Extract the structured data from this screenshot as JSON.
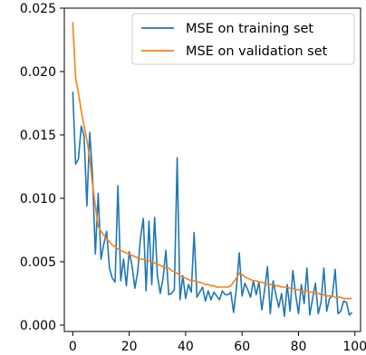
{
  "chart_data": {
    "type": "line",
    "xlim": [
      -3,
      102
    ],
    "ylim": [
      -0.0005,
      0.025
    ],
    "x_ticks": [
      0,
      20,
      40,
      60,
      80,
      100
    ],
    "x_tick_labels": [
      "0",
      "20",
      "40",
      "60",
      "80",
      "100"
    ],
    "y_ticks": [
      0.0,
      0.005,
      0.01,
      0.015,
      0.02,
      0.025
    ],
    "y_tick_labels": [
      "0.000",
      "0.005",
      "0.010",
      "0.015",
      "0.020",
      "0.025"
    ],
    "grid": false,
    "legend_position": "top-right",
    "series": [
      {
        "name": "MSE on training set",
        "color": "#1f77b4",
        "x": [
          0,
          1,
          2,
          3,
          4,
          5,
          6,
          7,
          8,
          9,
          10,
          11,
          12,
          13,
          14,
          15,
          16,
          17,
          18,
          19,
          20,
          21,
          22,
          23,
          24,
          25,
          26,
          27,
          28,
          29,
          30,
          31,
          32,
          33,
          34,
          35,
          36,
          37,
          38,
          39,
          40,
          41,
          42,
          43,
          44,
          45,
          46,
          47,
          48,
          49,
          50,
          51,
          52,
          53,
          54,
          55,
          56,
          57,
          58,
          59,
          60,
          61,
          62,
          63,
          64,
          65,
          66,
          67,
          68,
          69,
          70,
          71,
          72,
          73,
          74,
          75,
          76,
          77,
          78,
          79,
          80,
          81,
          82,
          83,
          84,
          85,
          86,
          87,
          88,
          89,
          90,
          91,
          92,
          93,
          94,
          95,
          96,
          97,
          98,
          99
        ],
        "values": [
          0.0184,
          0.0127,
          0.0131,
          0.0157,
          0.0149,
          0.0094,
          0.0152,
          0.0118,
          0.0056,
          0.0104,
          0.0052,
          0.0064,
          0.0074,
          0.0045,
          0.0037,
          0.0034,
          0.011,
          0.0035,
          0.0052,
          0.0031,
          0.0058,
          0.0047,
          0.0029,
          0.0042,
          0.0069,
          0.0084,
          0.0027,
          0.0082,
          0.0032,
          0.0085,
          0.0039,
          0.0025,
          0.0037,
          0.0059,
          0.0024,
          0.0025,
          0.0028,
          0.0132,
          0.002,
          0.0039,
          0.0021,
          0.0032,
          0.0026,
          0.0073,
          0.0022,
          0.0026,
          0.003,
          0.0019,
          0.0027,
          0.002,
          0.0026,
          0.0023,
          0.002,
          0.0027,
          0.0024,
          0.0024,
          0.0026,
          0.001,
          0.0029,
          0.0057,
          0.0023,
          0.0033,
          0.0028,
          0.0022,
          0.0035,
          0.0024,
          0.0034,
          0.0012,
          0.0028,
          0.0046,
          0.0009,
          0.0035,
          0.0024,
          0.0014,
          0.0025,
          0.0007,
          0.0032,
          0.0011,
          0.0043,
          0.0024,
          0.0009,
          0.0032,
          0.0017,
          0.0045,
          0.0008,
          0.0021,
          0.0033,
          0.0009,
          0.0018,
          0.0045,
          0.0011,
          0.0021,
          0.0023,
          0.0044,
          0.0009,
          0.0011,
          0.0019,
          0.0018,
          0.0008,
          0.001
        ]
      },
      {
        "name": "MSE on validation set",
        "color": "#ff7f0e",
        "x": [
          0,
          1,
          2,
          3,
          4,
          5,
          6,
          7,
          8,
          9,
          10,
          11,
          12,
          13,
          14,
          15,
          16,
          17,
          18,
          19,
          20,
          21,
          22,
          23,
          24,
          25,
          26,
          27,
          28,
          29,
          30,
          31,
          32,
          33,
          34,
          35,
          36,
          37,
          38,
          39,
          40,
          41,
          42,
          43,
          44,
          45,
          46,
          47,
          48,
          49,
          50,
          51,
          52,
          53,
          54,
          55,
          56,
          57,
          58,
          59,
          60,
          61,
          62,
          63,
          64,
          65,
          66,
          67,
          68,
          69,
          70,
          71,
          72,
          73,
          74,
          75,
          76,
          77,
          78,
          79,
          80,
          81,
          82,
          83,
          84,
          85,
          86,
          87,
          88,
          89,
          90,
          91,
          92,
          93,
          94,
          95,
          96,
          97,
          98,
          99
        ],
        "values": [
          0.0239,
          0.0195,
          0.0183,
          0.0169,
          0.0157,
          0.0146,
          0.0132,
          0.0111,
          0.0094,
          0.0078,
          0.0074,
          0.0071,
          0.0068,
          0.0066,
          0.0063,
          0.0062,
          0.006,
          0.0059,
          0.0058,
          0.0057,
          0.0056,
          0.0055,
          0.0054,
          0.0053,
          0.0052,
          0.0052,
          0.0051,
          0.0051,
          0.005,
          0.0049,
          0.0048,
          0.0047,
          0.0046,
          0.0045,
          0.0045,
          0.0043,
          0.0042,
          0.0041,
          0.0039,
          0.0038,
          0.0037,
          0.0036,
          0.0035,
          0.0035,
          0.0034,
          0.0034,
          0.0033,
          0.0032,
          0.0032,
          0.0031,
          0.0031,
          0.003,
          0.003,
          0.003,
          0.003,
          0.003,
          0.0031,
          0.0034,
          0.0037,
          0.0041,
          0.004,
          0.0038,
          0.0037,
          0.0036,
          0.0035,
          0.0035,
          0.0034,
          0.0034,
          0.0033,
          0.0032,
          0.0032,
          0.0032,
          0.0031,
          0.0031,
          0.003,
          0.003,
          0.003,
          0.0029,
          0.0029,
          0.0028,
          0.0028,
          0.0027,
          0.0027,
          0.0027,
          0.0026,
          0.0026,
          0.0025,
          0.0025,
          0.0024,
          0.0024,
          0.0023,
          0.0023,
          0.0023,
          0.0022,
          0.0022,
          0.0022,
          0.0021,
          0.0021,
          0.0021,
          0.0021
        ]
      }
    ]
  }
}
